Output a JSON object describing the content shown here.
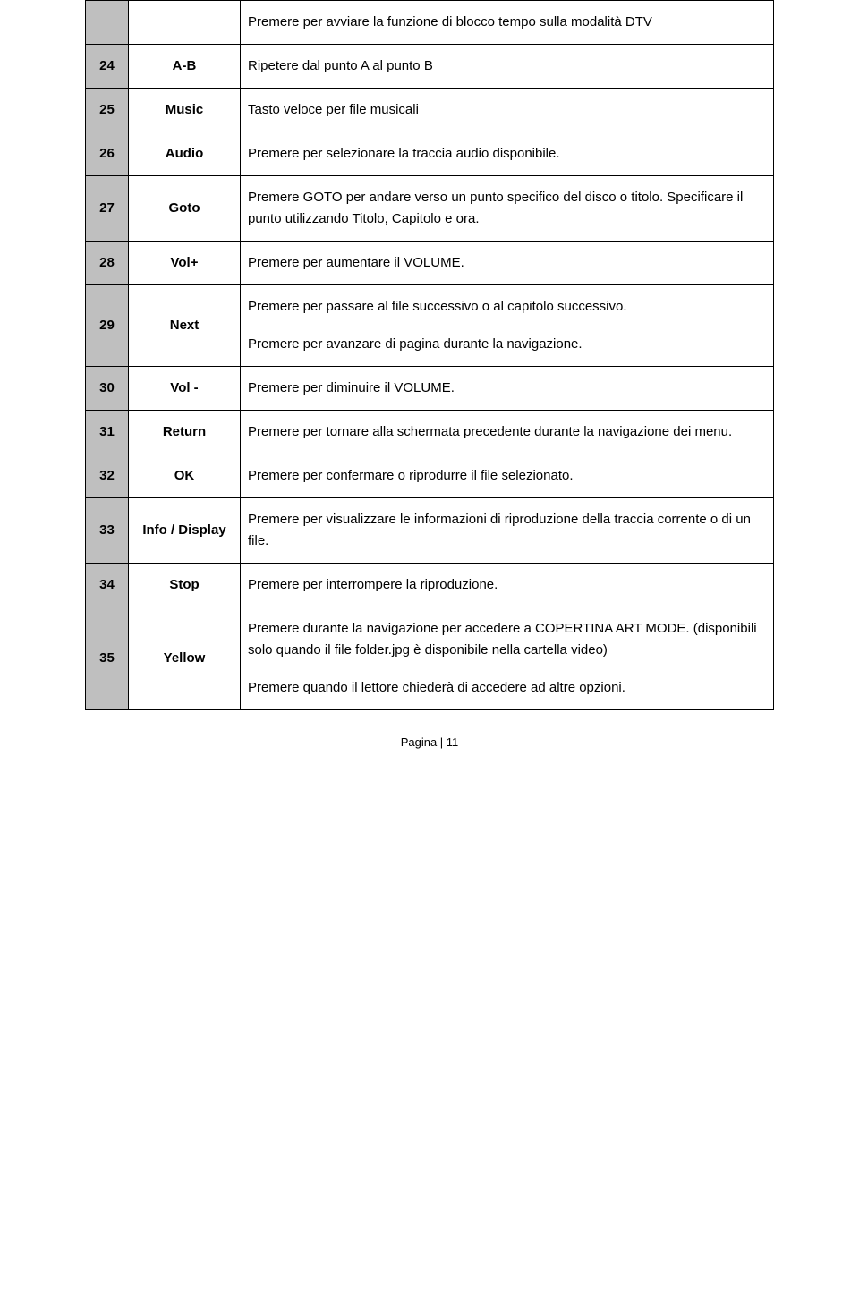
{
  "rows": [
    {
      "num": "",
      "key": "",
      "desc": [
        "Premere per avviare la funzione di blocco tempo sulla modalità DTV"
      ]
    },
    {
      "num": "24",
      "key": "A-B",
      "desc": [
        "Ripetere dal punto A al punto B"
      ]
    },
    {
      "num": "25",
      "key": "Music",
      "desc": [
        "Tasto veloce per file musicali"
      ]
    },
    {
      "num": "26",
      "key": "Audio",
      "desc": [
        "Premere per selezionare la traccia audio disponibile."
      ]
    },
    {
      "num": "27",
      "key": "Goto",
      "desc": [
        "Premere GOTO per andare verso un punto specifico del disco o titolo. Specificare il punto utilizzando Titolo, Capitolo e ora."
      ]
    },
    {
      "num": "28",
      "key": "Vol+",
      "desc": [
        "Premere per aumentare il VOLUME."
      ]
    },
    {
      "num": "29",
      "key": "Next",
      "desc": [
        "Premere per passare al file successivo o al capitolo successivo.",
        "Premere per avanzare di pagina durante la navigazione."
      ]
    },
    {
      "num": "30",
      "key": "Vol -",
      "desc": [
        "Premere per diminuire il VOLUME."
      ]
    },
    {
      "num": "31",
      "key": "Return",
      "desc": [
        "Premere per tornare alla schermata precedente durante la navigazione dei menu."
      ]
    },
    {
      "num": "32",
      "key": "OK",
      "desc": [
        "Premere per confermare o riprodurre il file selezionato."
      ]
    },
    {
      "num": "33",
      "key": "Info / Display",
      "desc": [
        "Premere per visualizzare le informazioni di riproduzione della traccia corrente o di un file."
      ]
    },
    {
      "num": "34",
      "key": "Stop",
      "desc": [
        "Premere per interrompere la riproduzione."
      ]
    },
    {
      "num": "35",
      "key": "Yellow",
      "desc": [
        "Premere durante la navigazione per accedere a COPERTINA ART MODE. (disponibili solo quando il file folder.jpg è disponibile nella cartella video)",
        "Premere quando il lettore chiederà di accedere ad altre opzioni."
      ]
    }
  ],
  "footer": "Pagina | 11"
}
